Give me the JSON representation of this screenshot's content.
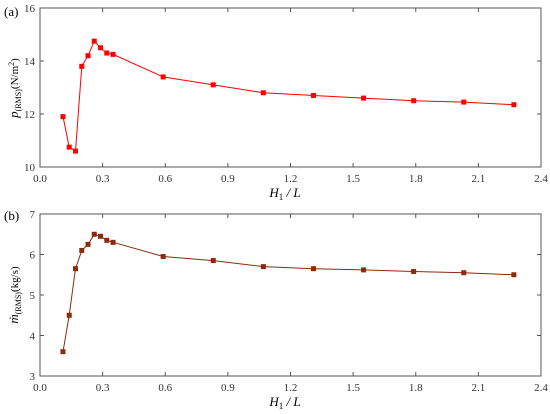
{
  "chart_data": [
    {
      "type": "line",
      "panel_label": "(a)",
      "xlabel": {
        "main": "H",
        "sub": "1",
        "rest": " / L"
      },
      "ylabel": {
        "main": "p",
        "sub": "(RMS)",
        "rest": "(N/m",
        "sup": "2",
        "end": ")"
      },
      "xlim": [
        0.0,
        2.4
      ],
      "ylim": [
        10,
        16
      ],
      "x_ticks": [
        "0.0",
        "0.3",
        "0.6",
        "0.9",
        "1.2",
        "1.5",
        "1.8",
        "2.1",
        "2.4"
      ],
      "x_tick_values": [
        0.0,
        0.3,
        0.6,
        0.9,
        1.2,
        1.5,
        1.8,
        2.1,
        2.4
      ],
      "y_ticks": [
        "10",
        "12",
        "14",
        "16"
      ],
      "y_tick_values": [
        10,
        12,
        14,
        16
      ],
      "grid": false,
      "series": [
        {
          "color": "#ff0000",
          "marker": "square",
          "x": [
            0.11,
            0.14,
            0.17,
            0.2,
            0.23,
            0.26,
            0.29,
            0.32,
            0.35,
            0.59,
            0.83,
            1.07,
            1.31,
            1.55,
            1.79,
            2.03,
            2.27
          ],
          "y": [
            11.9,
            10.75,
            10.6,
            13.8,
            14.2,
            14.75,
            14.5,
            14.3,
            14.25,
            13.4,
            13.1,
            12.8,
            12.7,
            12.6,
            12.5,
            12.45,
            12.35
          ]
        }
      ]
    },
    {
      "type": "line",
      "panel_label": "(b)",
      "xlabel": {
        "main": "H",
        "sub": "1",
        "rest": " / L"
      },
      "ylabel": {
        "main": "ṁ",
        "sub": "(RMS)",
        "rest": "(kg/s)"
      },
      "xlim": [
        0.0,
        2.4
      ],
      "ylim": [
        3,
        7
      ],
      "x_ticks": [
        "0.0",
        "0.3",
        "0.6",
        "0.9",
        "1.2",
        "1.5",
        "1.8",
        "2.1",
        "2.4"
      ],
      "x_tick_values": [
        0.0,
        0.3,
        0.6,
        0.9,
        1.2,
        1.5,
        1.8,
        2.1,
        2.4
      ],
      "y_ticks": [
        "3",
        "4",
        "5",
        "6",
        "7"
      ],
      "y_tick_values": [
        3,
        4,
        5,
        6,
        7
      ],
      "grid": false,
      "series": [
        {
          "color": "#8b2a0e",
          "marker": "square",
          "x": [
            0.11,
            0.14,
            0.17,
            0.2,
            0.23,
            0.26,
            0.29,
            0.32,
            0.35,
            0.59,
            0.83,
            1.07,
            1.31,
            1.55,
            1.79,
            2.03,
            2.27
          ],
          "y": [
            3.6,
            4.5,
            5.65,
            6.1,
            6.25,
            6.5,
            6.45,
            6.35,
            6.3,
            5.95,
            5.85,
            5.7,
            5.65,
            5.62,
            5.58,
            5.55,
            5.5
          ]
        }
      ]
    }
  ]
}
